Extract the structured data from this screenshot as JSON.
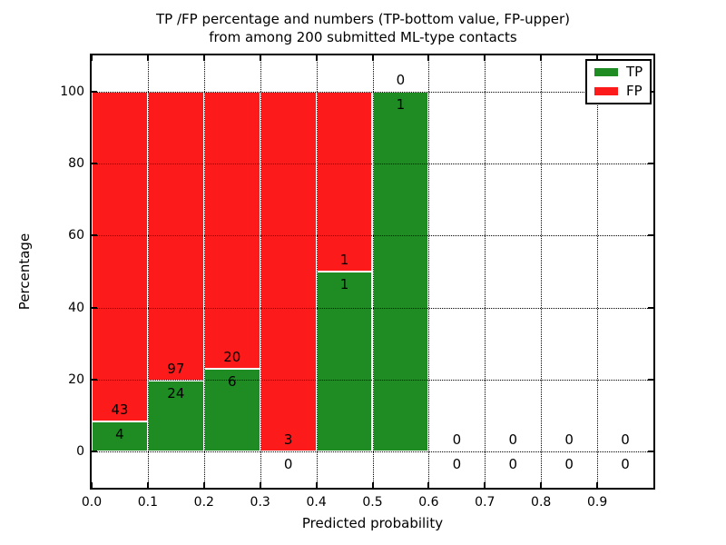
{
  "chart_data": {
    "type": "bar",
    "stacked": true,
    "title_line1": "TP /FP percentage and numbers (TP-bottom value, FP-upper)",
    "title_line2": "from among 200 submitted ML-type contacts",
    "xlabel": "Predicted probability",
    "ylabel": "Percentage",
    "xlim": [
      0,
      1
    ],
    "ylim": [
      -10,
      110
    ],
    "xticks": [
      0.0,
      0.1,
      0.2,
      0.3,
      0.4,
      0.5,
      0.6,
      0.7,
      0.8,
      0.9
    ],
    "xtick_labels": [
      "0.0",
      "0.1",
      "0.2",
      "0.3",
      "0.4",
      "0.5",
      "0.6",
      "0.7",
      "0.8",
      "0.9"
    ],
    "yticks": [
      0,
      20,
      40,
      60,
      80,
      100
    ],
    "ytick_labels": [
      "0",
      "20",
      "40",
      "60",
      "80",
      "100"
    ],
    "grid": "dotted both axes",
    "legend_position": "upper right",
    "colors": {
      "tp": "#1e8c23",
      "fp": "#fd1a1a",
      "bar_edge": "#ffffff"
    },
    "legend": [
      {
        "label": "TP",
        "series": "tp"
      },
      {
        "label": "FP",
        "series": "fp"
      }
    ],
    "bins": [
      {
        "range": [
          0.0,
          0.1
        ],
        "tp": 4,
        "fp": 43,
        "tp_pct": 8.51,
        "total_pct": 100
      },
      {
        "range": [
          0.1,
          0.2
        ],
        "tp": 24,
        "fp": 97,
        "tp_pct": 19.83,
        "total_pct": 100
      },
      {
        "range": [
          0.2,
          0.3
        ],
        "tp": 6,
        "fp": 20,
        "tp_pct": 23.08,
        "total_pct": 100
      },
      {
        "range": [
          0.3,
          0.4
        ],
        "tp": 0,
        "fp": 3,
        "tp_pct": 0,
        "total_pct": 100
      },
      {
        "range": [
          0.4,
          0.5
        ],
        "tp": 1,
        "fp": 1,
        "tp_pct": 50,
        "total_pct": 100
      },
      {
        "range": [
          0.5,
          0.6
        ],
        "tp": 1,
        "fp": 0,
        "tp_pct": 100,
        "total_pct": 100
      },
      {
        "range": [
          0.6,
          0.7
        ],
        "tp": 0,
        "fp": 0,
        "tp_pct": 0,
        "total_pct": 0
      },
      {
        "range": [
          0.7,
          0.8
        ],
        "tp": 0,
        "fp": 0,
        "tp_pct": 0,
        "total_pct": 0
      },
      {
        "range": [
          0.8,
          0.9
        ],
        "tp": 0,
        "fp": 0,
        "tp_pct": 0,
        "total_pct": 0
      },
      {
        "range": [
          0.9,
          1.0
        ],
        "tp": 0,
        "fp": 0,
        "tp_pct": 0,
        "total_pct": 0
      }
    ]
  }
}
